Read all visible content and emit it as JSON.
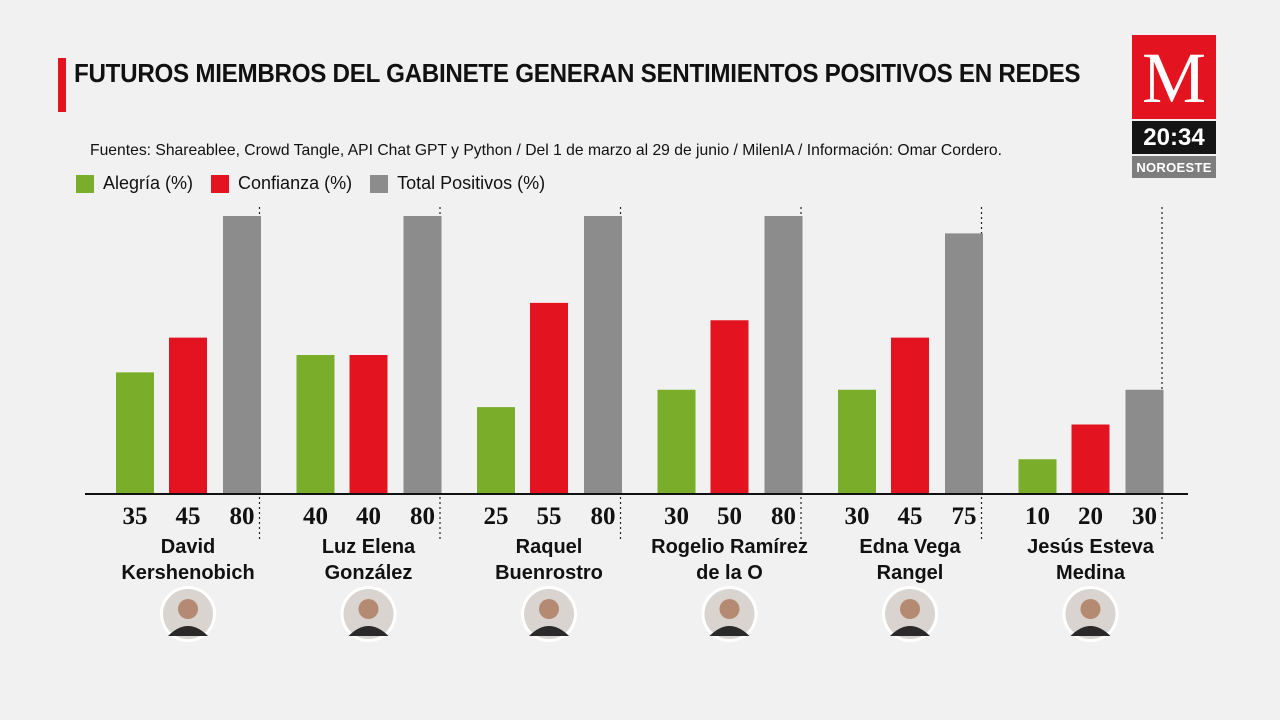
{
  "header": {
    "title": "FUTUROS MIEMBROS DEL GABINETE GENERAN SENTIMIENTOS POSITIVOS EN REDES",
    "source": "Fuentes: Shareablee, Crowd Tangle, API Chat GPT y Python / Del 1 de marzo al 29 de junio / MilenIA / Información: Omar Cordero."
  },
  "branding": {
    "logo_letter": "M",
    "time": "20:34",
    "channel": "NOROESTE"
  },
  "colors": {
    "accent": "#e3141f",
    "alegria": "#7aad2a",
    "confianza": "#e3141f",
    "total": "#8c8c8c"
  },
  "chart_data": {
    "type": "bar",
    "title": "FUTUROS MIEMBROS DEL GABINETE GENERAN SENTIMIENTOS POSITIVOS EN REDES",
    "categories": [
      "David Kershenobich",
      "Luz Elena González",
      "Raquel Buenrostro",
      "Rogelio Ramírez de la O",
      "Edna Vega Rangel",
      "Jesús Esteva Medina"
    ],
    "category_lines": [
      [
        "David",
        "Kershenobich"
      ],
      [
        "Luz Elena",
        "González"
      ],
      [
        "Raquel",
        "Buenrostro"
      ],
      [
        "Rogelio Ramírez",
        "de la O"
      ],
      [
        "Edna Vega",
        "Rangel"
      ],
      [
        "Jesús Esteva",
        "Medina"
      ]
    ],
    "series": [
      {
        "name": "Alegría (%)",
        "key": "alegria",
        "values": [
          35,
          40,
          25,
          30,
          30,
          10
        ]
      },
      {
        "name": "Confianza (%)",
        "key": "confianza",
        "values": [
          45,
          40,
          55,
          50,
          45,
          20
        ]
      },
      {
        "name": "Total Positivos (%)",
        "key": "total",
        "values": [
          80,
          80,
          80,
          80,
          75,
          30
        ]
      }
    ],
    "ylim": [
      0,
      80
    ],
    "xlabel": "",
    "ylabel": "",
    "grid": false,
    "legend": "top-left"
  }
}
